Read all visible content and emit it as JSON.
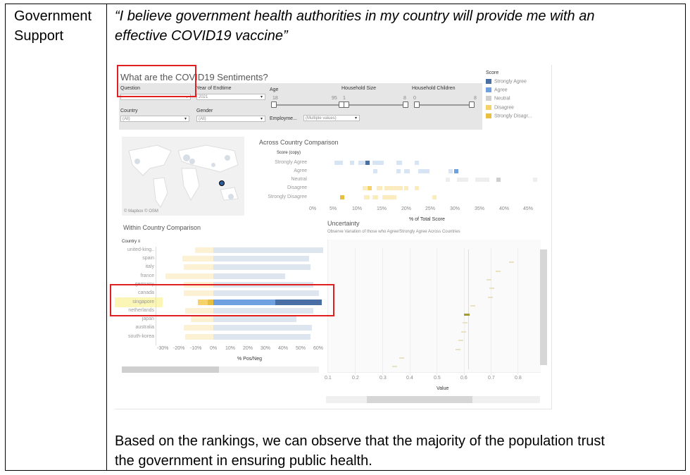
{
  "row": {
    "label_line1": "Government",
    "label_line2": "Support",
    "quote_line1": "“I believe government health authorities in my country will provide me with an",
    "quote_line2": "effective COVID19 vaccine”",
    "conclusion_line1": "Based on the rankings, we can observe that the majority of the population trust",
    "conclusion_line2": "the government in ensuring public health."
  },
  "dashboard": {
    "title": "What are the COVID19 Sentiments?",
    "filters": {
      "question_label": "Question",
      "year_label": "Year of Endtime",
      "year_value": "2021",
      "age_label": "Age",
      "age_min": "18",
      "age_max": "95",
      "household_size_label": "Household Size",
      "household_size_min": "1",
      "household_size_max": "8",
      "household_children_label": "Household Children",
      "household_children_min": "0",
      "household_children_max": "8",
      "country_label": "Country",
      "country_value": "(All)",
      "gender_label": "Gender",
      "gender_value": "(All)",
      "employment_label": "Employme...",
      "employment_value": "(Multiple values)"
    },
    "legend": {
      "title": "Score",
      "items": [
        {
          "label": "Strongly Agree",
          "color": "#4a6fa5"
        },
        {
          "label": "Agree",
          "color": "#6fa0e0"
        },
        {
          "label": "Neutral",
          "color": "#cfcfcf"
        },
        {
          "label": "Disagree",
          "color": "#f6d36a"
        },
        {
          "label": "Strongly Disagr...",
          "color": "#e8c040"
        }
      ]
    },
    "map_credit": "© Mapbox © OSM",
    "across": {
      "title": "Across Country Comparison",
      "header": "Score (copy)",
      "rows": [
        "Strongly Agree",
        "Agree",
        "Neutral",
        "Disagree",
        "Strongly Disagree"
      ],
      "ticks": [
        "0%",
        "5%",
        "10%",
        "15%",
        "20%",
        "25%",
        "30%",
        "35%",
        "40%",
        "45%"
      ],
      "axis_title": "% of Total Score"
    },
    "within": {
      "title": "Within Country Comparison",
      "header": "Country",
      "countries": [
        "united-king..",
        "spain",
        "italy",
        "france",
        "germany",
        "canada",
        "singapore",
        "netherlands",
        "japan",
        "australia",
        "south-korea"
      ],
      "ticks": [
        "-30%",
        "-20%",
        "-10%",
        "0%",
        "10%",
        "20%",
        "30%",
        "40%",
        "50%",
        "60%"
      ],
      "axis_title": "% Pos/Neg"
    },
    "uncertainty": {
      "title": "Uncertainty",
      "subtitle": "Observe Variation of those who Agree/Strongly Agree Across Countries",
      "ticks": [
        "0.1",
        "0.2",
        "0.3",
        "0.4",
        "0.5",
        "0.6",
        "0.7",
        "0.8"
      ],
      "axis_title": "Value"
    }
  }
}
